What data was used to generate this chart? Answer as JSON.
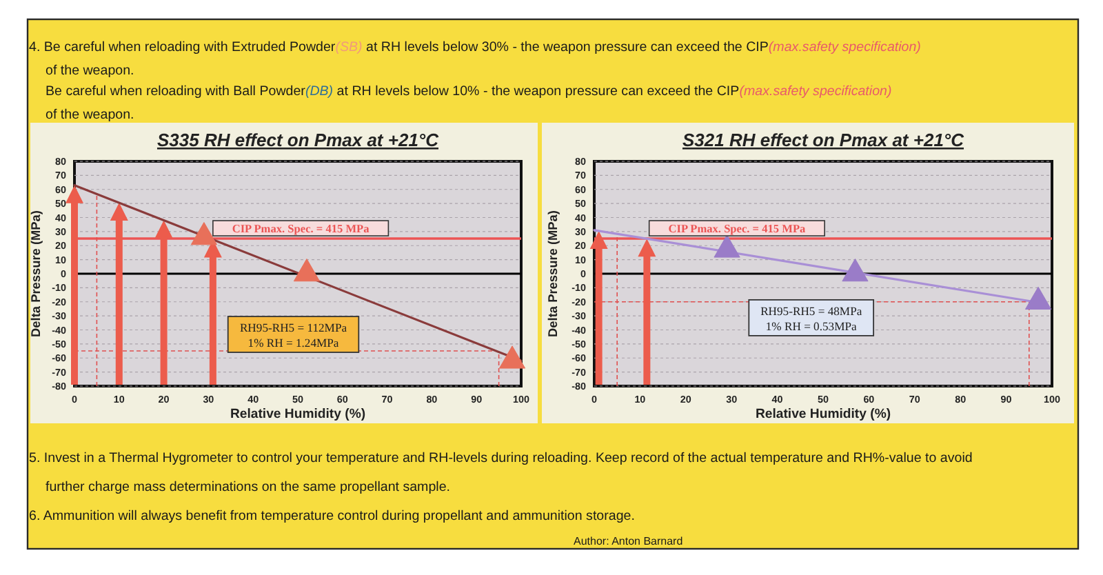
{
  "chart_data": [
    {
      "type": "scatter",
      "title": "S335 RH effect on Pmax at +21°C",
      "xlabel": "Relative Humidity (%)",
      "ylabel": "Delta Pressure (MPa)",
      "xlim": [
        0,
        100
      ],
      "ylim": [
        -80,
        80
      ],
      "xticks": [
        0,
        10,
        20,
        30,
        40,
        50,
        60,
        70,
        80,
        90,
        100
      ],
      "yticks": [
        -80,
        -70,
        -60,
        -50,
        -40,
        -30,
        -20,
        -10,
        0,
        10,
        20,
        30,
        40,
        50,
        60,
        70,
        80
      ],
      "grid": "y",
      "series": [
        {
          "type": "line",
          "x": [
            0,
            100
          ],
          "values": [
            63,
            -62
          ],
          "color": "#8a3b3b"
        },
        {
          "x": [
            29,
            52,
            98
          ],
          "values": [
            26,
            0,
            -62
          ],
          "color": "#e8705a",
          "marker": "triangle"
        }
      ],
      "ref_lines": [
        {
          "axis": "y",
          "value": 25,
          "color": "#ec5555"
        },
        {
          "axis": "y",
          "value": 0,
          "color": "#000000"
        },
        {
          "axis": "x",
          "value": 5,
          "color": "#e05050",
          "line_style": "dashed"
        },
        {
          "axis": "x",
          "value": 95,
          "color": "#e05050",
          "line_style": "dashed"
        },
        {
          "axis": "y",
          "value": -55,
          "color": "#e05050",
          "line_style": "dashed"
        }
      ],
      "annotations": [
        "RH95-RH5 = 112MPa\n1% RH = 1.24MPa",
        "4. Be careful when reloading with Extruded Powder(SB) at RH levels below 30% - the weapon pressure can exceed the CIP(max.safety specification)",
        "of the weapon.",
        "Be careful when reloading with Ball Powder(DB) at RH levels below 10% - the weapon pressure can exceed the CIP(max.safety specification)",
        "of the weapon.",
        {
          "text": "CIP Pmax. Spec. = 415 MPa",
          "x": 31,
          "y": 25
        }
      ]
    },
    {
      "type": "scatter",
      "title": "S321 RH effect on Pmax at +21°C",
      "xlabel": "Relative Humidity (%)",
      "ylabel": "Delta Pressure (MPa)",
      "xlim": [
        0,
        100
      ],
      "ylim": [
        -80,
        80
      ],
      "xticks": [
        0,
        10,
        20,
        30,
        40,
        50,
        60,
        70,
        80,
        90,
        100
      ],
      "yticks": [
        -80,
        -70,
        -60,
        -50,
        -40,
        -30,
        -20,
        -10,
        0,
        10,
        20,
        30,
        40,
        50,
        60,
        70,
        80
      ],
      "grid": "y",
      "series": [
        {
          "type": "line",
          "x": [
            0,
            98
          ],
          "values": [
            31,
            -21
          ],
          "color": "#a98fd6"
        },
        {
          "x": [
            29,
            57,
            97
          ],
          "values": [
            17,
            0,
            -20
          ],
          "color": "#9a7cc8",
          "marker": "triangle"
        }
      ],
      "ref_lines": [
        {
          "axis": "y",
          "value": 25,
          "color": "#ec5555"
        },
        {
          "axis": "y",
          "value": 0,
          "color": "#000000"
        },
        {
          "axis": "x",
          "value": 5,
          "color": "#e05050",
          "line_style": "dashed"
        },
        {
          "axis": "x",
          "value": 95,
          "color": "#e05050",
          "line_style": "dashed"
        },
        {
          "axis": "y",
          "value": -20,
          "color": "#e05050",
          "line_style": "dashed"
        }
      ],
      "annotations": [
        "RH95-RH5 = 48MPa\n1% RH = 0.53MPa",
        "5. Invest in a Thermal Hygrometer to control your temperature and RH-levels during reloading. Keep record of the actual temperature and RH%-value to avoid",
        "further charge mass determinations on the same propellant sample.",
        "6. Ammunition will always benefit from temperature control during propellant and ammunition storage.",
        "Author: Anton Barnard",
        {
          "text": "CIP Pmax. Spec. = 415 MPa",
          "x": 12,
          "y": 25
        }
      ]
    }
  ]
}
